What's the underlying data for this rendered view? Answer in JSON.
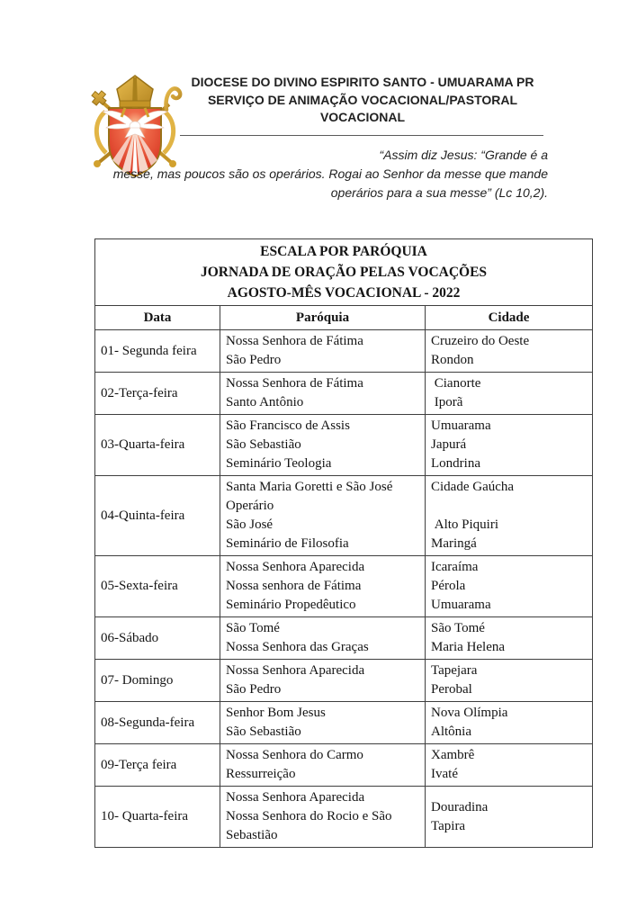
{
  "header": {
    "line1": "DIOCESE DO DIVINO ESPIRITO SANTO - UMUARAMA PR",
    "line2": "SERVIÇO DE ANIMAÇÃO VOCACIONAL/PASTORAL",
    "line3": "VOCACIONAL"
  },
  "logo": {
    "name": "diocese-coat-of-arms",
    "colors": {
      "gold": "#d2a12e",
      "gold_dark": "#9a7318",
      "red": "#d5301d",
      "red_light": "#ef6a4a",
      "white": "#ffffff"
    }
  },
  "quote": {
    "line1": "“Assim diz Jesus: “Grande é a",
    "line2": "messe, mas poucos são os operários. Rogai ao Senhor da messe que mande",
    "line3": "operários para a sua messe” (Lc 10,2)."
  },
  "table": {
    "border_color": "#3f3f3f",
    "title": [
      "ESCALA POR PARÓQUIA",
      "JORNADA DE ORAÇÃO PELAS VOCAÇÕES",
      "AGOSTO-MÊS VOCACIONAL - 2022"
    ],
    "columns": [
      "Data",
      "Paróquia",
      "Cidade"
    ],
    "rows": [
      {
        "data": "01- Segunda feira",
        "paroquia": [
          "Nossa Senhora de Fátima",
          "São Pedro"
        ],
        "cidade": [
          "Cruzeiro do Oeste",
          "Rondon"
        ]
      },
      {
        "data": "02-Terça-feira",
        "paroquia": [
          "Nossa Senhora de Fátima",
          "Santo Antônio"
        ],
        "cidade": [
          " Cianorte",
          " Iporã"
        ]
      },
      {
        "data": "03-Quarta-feira",
        "paroquia": [
          "São Francisco de Assis",
          "São Sebastião",
          "Seminário Teologia"
        ],
        "cidade": [
          "Umuarama",
          "Japurá",
          "Londrina"
        ]
      },
      {
        "data": "04-Quinta-feira",
        "paroquia": [
          "Santa Maria Goretti e São José",
          "Operário",
          "São José",
          "Seminário de Filosofia"
        ],
        "cidade": [
          "Cidade Gaúcha",
          "",
          " Alto Piquiri",
          "Maringá"
        ]
      },
      {
        "data": "05-Sexta-feira",
        "paroquia": [
          "Nossa Senhora Aparecida",
          "Nossa senhora de Fátima",
          "Seminário Propedêutico"
        ],
        "cidade": [
          "Icaraíma",
          "Pérola",
          "Umuarama"
        ]
      },
      {
        "data": "06-Sábado",
        "paroquia": [
          "São Tomé",
          "Nossa Senhora das Graças"
        ],
        "cidade": [
          "São Tomé",
          "Maria Helena"
        ]
      },
      {
        "data": "07- Domingo",
        "paroquia": [
          "Nossa Senhora Aparecida",
          "São Pedro"
        ],
        "cidade": [
          "Tapejara",
          "Perobal"
        ]
      },
      {
        "data": "08-Segunda-feira",
        "paroquia": [
          "Senhor Bom Jesus",
          "São Sebastião"
        ],
        "cidade": [
          "Nova Olímpia",
          "Altônia"
        ]
      },
      {
        "data": "09-Terça feira",
        "paroquia": [
          "Nossa Senhora do Carmo",
          "Ressurreição"
        ],
        "cidade": [
          "Xambrê",
          "Ivaté"
        ]
      },
      {
        "data": "10- Quarta-feira",
        "paroquia": [
          "Nossa Senhora Aparecida",
          "Nossa Senhora do Rocio e São",
          "Sebastião"
        ],
        "cidade": [
          "Douradina",
          "Tapira"
        ]
      }
    ]
  }
}
